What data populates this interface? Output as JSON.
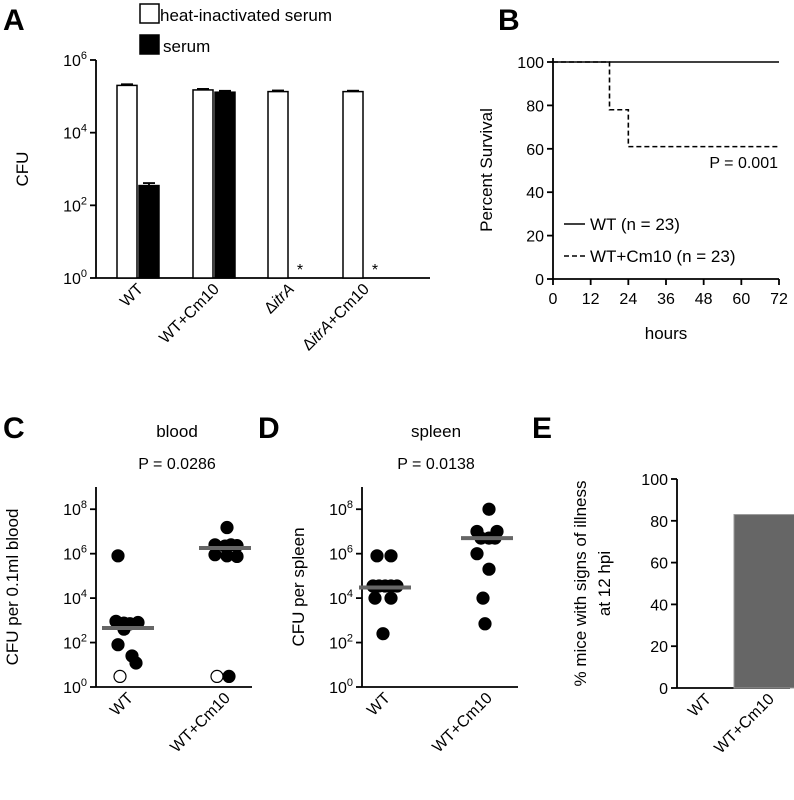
{
  "panels": {
    "A": "A",
    "B": "B",
    "C": "C",
    "D": "D",
    "E": "E"
  },
  "chart_data": [
    {
      "id": "A",
      "type": "bar",
      "ylabel": "CFU",
      "yscale": "log",
      "ylim": [
        1,
        1000000
      ],
      "yticks": [
        {
          "base": "10",
          "exp": "0"
        },
        {
          "base": "10",
          "exp": "2"
        },
        {
          "base": "10",
          "exp": "4"
        },
        {
          "base": "10",
          "exp": "6"
        }
      ],
      "categories": [
        {
          "main": "WT",
          "italic": ""
        },
        {
          "main": "WT+Cm10",
          "italic": ""
        },
        {
          "main": "Δ",
          "italic": "itrA"
        },
        {
          "main": "Δ",
          "italic": "itrA",
          "suffix": "+Cm10"
        }
      ],
      "legend": [
        {
          "name": "heat-inactivated serum",
          "color": "#ffffff"
        },
        {
          "name": "serum",
          "color": "#000000"
        }
      ],
      "series": [
        {
          "name": "heat-inactivated serum",
          "values": [
            200000,
            150000,
            135000,
            135000
          ],
          "err": [
            15000,
            10000,
            10000,
            8000
          ]
        },
        {
          "name": "serum",
          "values": [
            350,
            130000,
            null,
            null
          ],
          "err": [
            60,
            12000,
            null,
            null
          ]
        }
      ],
      "annotations": [
        "*",
        "*"
      ]
    },
    {
      "id": "B",
      "type": "line",
      "xlabel": "hours",
      "ylabel": "Percent Survival",
      "xlim": [
        0,
        72
      ],
      "ylim": [
        0,
        100
      ],
      "xticks": [
        "0",
        "12",
        "24",
        "36",
        "48",
        "60",
        "72"
      ],
      "yticks": [
        "0",
        "20",
        "40",
        "60",
        "80",
        "100"
      ],
      "annotation": "P = 0.001",
      "series": [
        {
          "name": "WT (n = 23)",
          "style": "solid",
          "x": [
            0,
            72
          ],
          "y": [
            100,
            100
          ]
        },
        {
          "name": "WT+Cm10 (n = 23)",
          "style": "dashed",
          "x": [
            0,
            18,
            18,
            24,
            24,
            72
          ],
          "y": [
            100,
            100,
            78,
            78,
            61,
            61
          ]
        }
      ]
    },
    {
      "id": "C",
      "type": "scatter",
      "title": "blood",
      "annotation": "P = 0.0286",
      "ylabel": "CFU per 0.1ml blood",
      "yscale": "log",
      "ylim": [
        1,
        1000000000
      ],
      "yticks": [
        {
          "base": "10",
          "exp": "0"
        },
        {
          "base": "10",
          "exp": "2"
        },
        {
          "base": "10",
          "exp": "4"
        },
        {
          "base": "10",
          "exp": "6"
        },
        {
          "base": "10",
          "exp": "8"
        }
      ],
      "categories": [
        "WT",
        "WT+Cm10"
      ],
      "groups": [
        {
          "median": 450,
          "points": [
            {
              "x": -0.25,
              "y": 800000,
              "open": false
            },
            {
              "x": -0.3,
              "y": 900,
              "open": false
            },
            {
              "x": -0.1,
              "y": 750,
              "open": false
            },
            {
              "x": 0.05,
              "y": 700,
              "open": false
            },
            {
              "x": 0.25,
              "y": 800,
              "open": false
            },
            {
              "x": -0.1,
              "y": 400,
              "open": false
            },
            {
              "x": -0.25,
              "y": 80,
              "open": false
            },
            {
              "x": 0.1,
              "y": 25,
              "open": false
            },
            {
              "x": 0.2,
              "y": 12,
              "open": false
            },
            {
              "x": -0.2,
              "y": 3,
              "open": true
            }
          ]
        },
        {
          "median": 1800000,
          "points": [
            {
              "x": 0.05,
              "y": 15000000,
              "open": false
            },
            {
              "x": -0.25,
              "y": 2500000,
              "open": false
            },
            {
              "x": 0.0,
              "y": 2200000,
              "open": false
            },
            {
              "x": 0.15,
              "y": 2500000,
              "open": false
            },
            {
              "x": 0.3,
              "y": 2300000,
              "open": false
            },
            {
              "x": -0.25,
              "y": 900000,
              "open": false
            },
            {
              "x": 0.05,
              "y": 800000,
              "open": false
            },
            {
              "x": 0.3,
              "y": 750000,
              "open": false
            },
            {
              "x": -0.2,
              "y": 3,
              "open": true
            },
            {
              "x": 0.1,
              "y": 3,
              "open": false
            }
          ]
        }
      ]
    },
    {
      "id": "D",
      "type": "scatter",
      "title": "spleen",
      "annotation": "P = 0.0138",
      "ylabel": "CFU per spleen",
      "yscale": "log",
      "ylim": [
        1,
        1000000000
      ],
      "yticks": [
        {
          "base": "10",
          "exp": "0"
        },
        {
          "base": "10",
          "exp": "2"
        },
        {
          "base": "10",
          "exp": "4"
        },
        {
          "base": "10",
          "exp": "6"
        },
        {
          "base": "10",
          "exp": "8"
        }
      ],
      "categories": [
        "WT",
        "WT+Cm10"
      ],
      "groups": [
        {
          "median": 30000,
          "points": [
            {
              "x": -0.2,
              "y": 800000,
              "open": false
            },
            {
              "x": 0.15,
              "y": 800000,
              "open": false
            },
            {
              "x": -0.3,
              "y": 35000,
              "open": false
            },
            {
              "x": -0.15,
              "y": 35000,
              "open": false
            },
            {
              "x": 0.0,
              "y": 35000,
              "open": false
            },
            {
              "x": 0.15,
              "y": 35000,
              "open": false
            },
            {
              "x": 0.3,
              "y": 35000,
              "open": false
            },
            {
              "x": -0.25,
              "y": 10000,
              "open": false
            },
            {
              "x": 0.15,
              "y": 10000,
              "open": false
            },
            {
              "x": -0.05,
              "y": 250,
              "open": false
            }
          ]
        },
        {
          "median": 5000000,
          "points": [
            {
              "x": 0.05,
              "y": 100000000,
              "open": false
            },
            {
              "x": -0.25,
              "y": 10000000,
              "open": false
            },
            {
              "x": 0.25,
              "y": 10000000,
              "open": false
            },
            {
              "x": -0.15,
              "y": 5000000,
              "open": false
            },
            {
              "x": 0.05,
              "y": 5000000,
              "open": false
            },
            {
              "x": 0.2,
              "y": 5000000,
              "open": false
            },
            {
              "x": -0.25,
              "y": 1000000,
              "open": false
            },
            {
              "x": 0.05,
              "y": 200000,
              "open": false
            },
            {
              "x": -0.1,
              "y": 10000,
              "open": false
            },
            {
              "x": -0.05,
              "y": 700,
              "open": false
            }
          ]
        }
      ]
    },
    {
      "id": "E",
      "type": "bar",
      "ylabel_lines": [
        "% mice with signs of illness",
        "at 12 hpi"
      ],
      "ylim": [
        0,
        100
      ],
      "yticks": [
        "0",
        "20",
        "40",
        "60",
        "80",
        "100"
      ],
      "categories": [
        "WT",
        "WT+Cm10"
      ],
      "values": [
        0,
        83
      ],
      "color": "#666666"
    }
  ]
}
